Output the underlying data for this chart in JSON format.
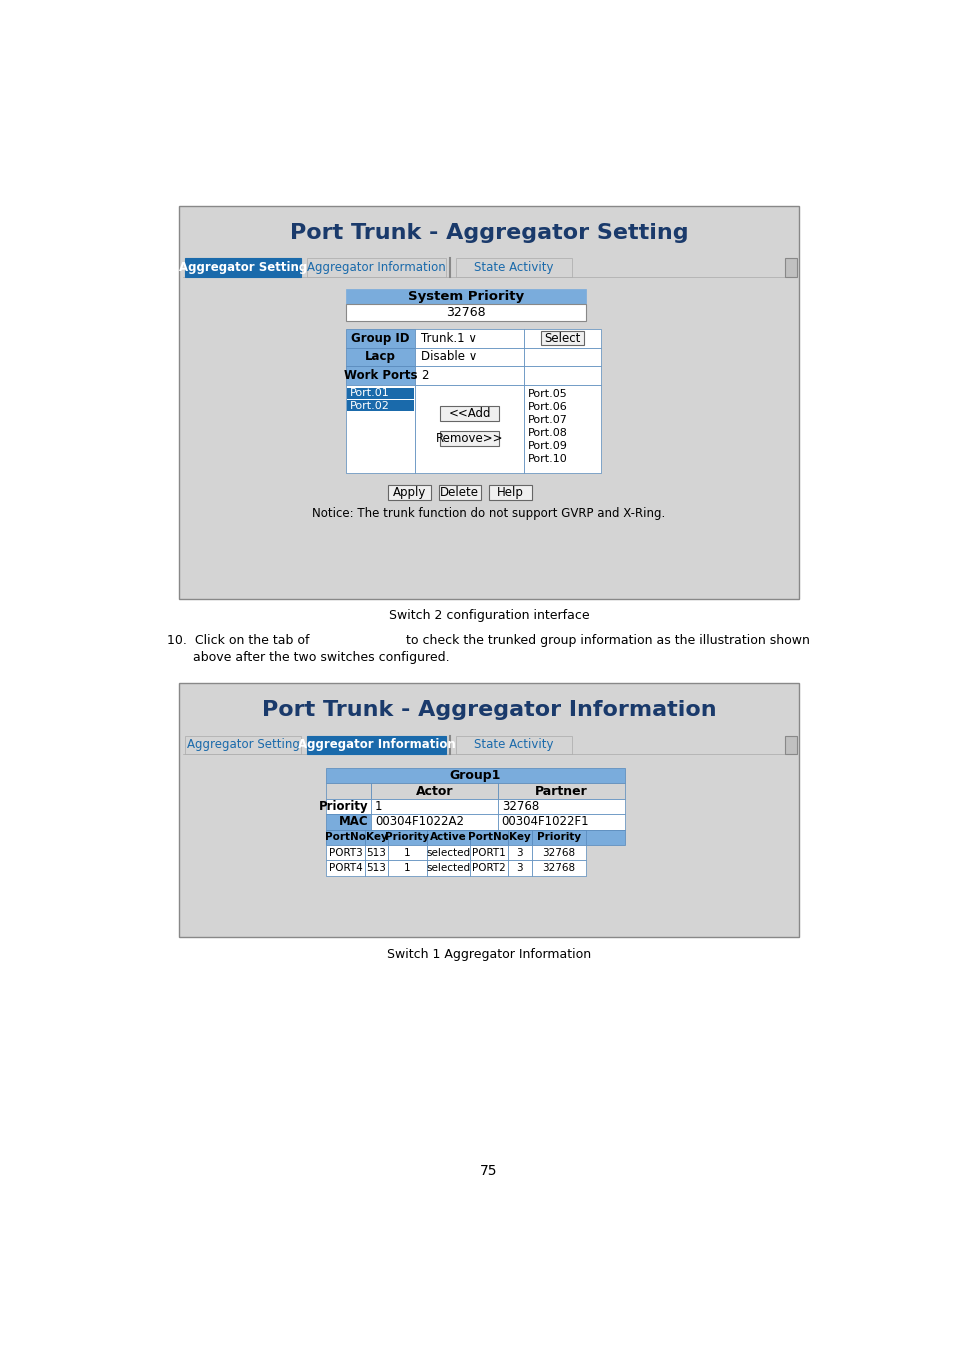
{
  "page_bg": "#ffffff",
  "page_num": "75",
  "caption1": "Switch 2 configuration interface",
  "caption2": "Switch 1 Aggregator Information",
  "step10_text1": "10.  Click on the tab of",
  "step10_text2": "to check the trunked group information as the illustration shown",
  "step10_text3": "above after the two switches configured.",
  "panel1": {
    "title": "Port Trunk - Aggregator Setting",
    "tab_active": "Aggregator Setting",
    "tab2": "Aggregator Information",
    "tab3": "State Activity",
    "section_header_text": "System Priority",
    "input_value": "32768",
    "rows": [
      {
        "label": "Group ID",
        "value": "Trunk.1 ∨",
        "extra": "Select"
      },
      {
        "label": "Lacp",
        "value": "Disable ∨",
        "extra": ""
      },
      {
        "label": "Work Ports",
        "value": "2",
        "extra": ""
      }
    ],
    "left_ports": [
      "Port.01",
      "Port.02"
    ],
    "right_ports": [
      "Port.05",
      "Port.06",
      "Port.07",
      "Port.08",
      "Port.09",
      "Port.10"
    ],
    "btn_add": "<<Add",
    "btn_remove": "Remove>>",
    "btn_apply": "Apply",
    "btn_delete": "Delete",
    "btn_help": "Help",
    "notice": "Notice: The trunk function do not support GVRP and X-Ring."
  },
  "panel2": {
    "title": "Port Trunk - Aggregator Information",
    "tab1": "Aggregator Setting",
    "tab_active": "Aggregator Information",
    "tab3": "State Activity",
    "group_title": "Group1",
    "col_actor": "Actor",
    "col_partner": "Partner",
    "rows_info": [
      {
        "label": "Priority",
        "label_bg": "#ffffff",
        "actor": "1",
        "partner": "32768"
      },
      {
        "label": "MAC",
        "label_bg": "#7aacdc",
        "actor": "00304F1022A2",
        "partner": "00304F1022F1"
      }
    ],
    "port_header": [
      "PortNo",
      "Key",
      "Priority",
      "Active",
      "PortNo",
      "Key",
      "Priority"
    ],
    "port_rows": [
      [
        "PORT3",
        "513",
        "1",
        "selected",
        "PORT1",
        "3",
        "32768"
      ],
      [
        "PORT4",
        "513",
        "1",
        "selected",
        "PORT2",
        "3",
        "32768"
      ]
    ]
  }
}
